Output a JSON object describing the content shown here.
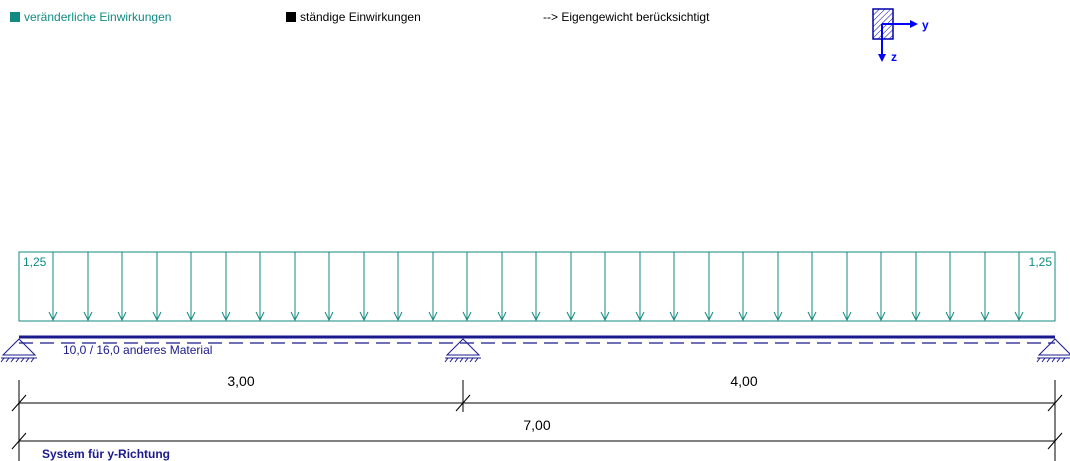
{
  "legend": {
    "variable_loads": "veränderliche Einwirkungen",
    "permanent_loads": "ständige Einwirkungen",
    "self_weight": "--> Eigengewicht berücksichtigt"
  },
  "axes_icon": {
    "y": "y",
    "z": "z"
  },
  "load": {
    "left_value": "1,25",
    "right_value": "1,25",
    "color": "#108a82"
  },
  "beam": {
    "label": "10,0 / 16,0  anderes Material",
    "color": "#1a1a8c"
  },
  "spans": [
    {
      "label": "3,00",
      "length": 3.0
    },
    {
      "label": "4,00",
      "length": 4.0
    }
  ],
  "total": {
    "label": "7,00",
    "length": 7.0
  },
  "caption": "System für y-Richtung"
}
